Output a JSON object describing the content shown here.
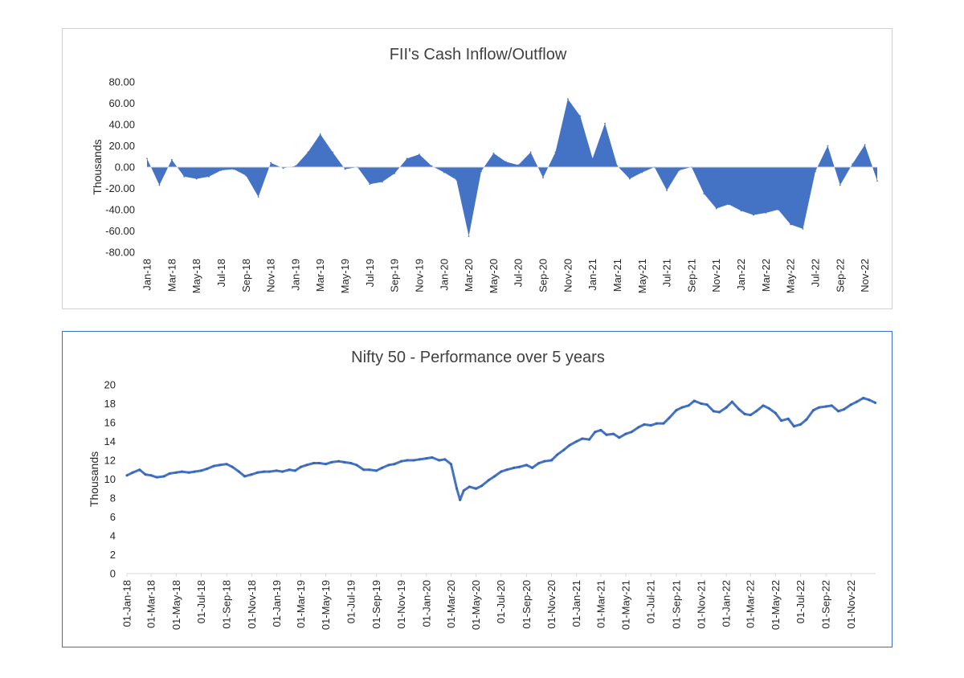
{
  "chart_data": [
    {
      "type": "area",
      "title": "FII's Cash Inflow/Outflow",
      "xlabel": "",
      "ylabel": "Thousands",
      "ylim": [
        -80,
        80
      ],
      "yticks": [
        "80.00",
        "60.00",
        "40.00",
        "20.00",
        "0.00",
        "-20.00",
        "-40.00",
        "-60.00",
        "-80.00"
      ],
      "tick_labels": [
        "Jan-18",
        "Mar-18",
        "May-18",
        "Jul-18",
        "Sep-18",
        "Nov-18",
        "Jan-19",
        "Mar-19",
        "May-19",
        "Jul-19",
        "Sep-19",
        "Nov-19",
        "Jan-20",
        "Mar-20",
        "May-20",
        "Jul-20",
        "Sep-20",
        "Nov-20",
        "Jan-21",
        "Mar-21",
        "May-21",
        "Jul-21",
        "Sep-21",
        "Nov-21",
        "Jan-22",
        "Mar-22",
        "May-22",
        "Jul-22",
        "Sep-22",
        "Nov-22"
      ],
      "categories": [
        "Jan-18",
        "Feb-18",
        "Mar-18",
        "Apr-18",
        "May-18",
        "Jun-18",
        "Jul-18",
        "Aug-18",
        "Sep-18",
        "Oct-18",
        "Nov-18",
        "Dec-18",
        "Jan-19",
        "Feb-19",
        "Mar-19",
        "Apr-19",
        "May-19",
        "Jun-19",
        "Jul-19",
        "Aug-19",
        "Sep-19",
        "Oct-19",
        "Nov-19",
        "Dec-19",
        "Jan-20",
        "Feb-20",
        "Mar-20",
        "Apr-20",
        "May-20",
        "Jun-20",
        "Jul-20",
        "Aug-20",
        "Sep-20",
        "Oct-20",
        "Nov-20",
        "Dec-20",
        "Jan-21",
        "Feb-21",
        "Mar-21",
        "Apr-21",
        "May-21",
        "Jun-21",
        "Jul-21",
        "Aug-21",
        "Sep-21",
        "Oct-21",
        "Nov-21",
        "Dec-21",
        "Jan-22",
        "Feb-22",
        "Mar-22",
        "Apr-22",
        "May-22",
        "Jun-22",
        "Jul-22",
        "Aug-22",
        "Sep-22",
        "Oct-22",
        "Nov-22",
        "Dec-22"
      ],
      "values": [
        8,
        -17,
        7,
        -9,
        -11,
        -9,
        -3,
        -2,
        -8,
        -28,
        4,
        -1,
        1,
        14,
        31,
        14,
        -2,
        0,
        -16,
        -14,
        -6,
        8,
        12,
        1,
        -5,
        -12,
        -65,
        -4,
        13,
        5,
        2,
        14,
        -10,
        14,
        64,
        48,
        8,
        41,
        1,
        -11,
        -5,
        0,
        -22,
        -3,
        0,
        -25,
        -39,
        -35,
        -41,
        -45,
        -43,
        -40,
        -54,
        -58,
        -4,
        20,
        -17,
        3,
        21,
        -13
      ],
      "fill_color": "#4472c4"
    },
    {
      "type": "line",
      "title": "Nifty 50 - Performance over 5 years",
      "xlabel": "",
      "ylabel": "Thousands",
      "ylim": [
        0,
        20
      ],
      "yticks": [
        "20",
        "18",
        "16",
        "14",
        "12",
        "10",
        "8",
        "6",
        "4",
        "2",
        "0"
      ],
      "tick_labels": [
        "01-Jan-18",
        "01-Mar-18",
        "01-May-18",
        "01-Jul-18",
        "01-Sep-18",
        "01-Nov-18",
        "01-Jan-19",
        "01-Mar-19",
        "01-May-19",
        "01-Jul-19",
        "01-Sep-19",
        "01-Nov-19",
        "01-Jan-20",
        "01-Mar-20",
        "01-May-20",
        "01-Jul-20",
        "01-Sep-20",
        "01-Nov-20",
        "01-Jan-21",
        "01-Mar-21",
        "01-May-21",
        "01-Jul-21",
        "01-Sep-21",
        "01-Nov-21",
        "01-Jan-22",
        "01-Mar-22",
        "01-May-22",
        "01-Jul-22",
        "01-Sep-22",
        "01-Nov-22"
      ],
      "x": [
        "2018-01-01",
        "2018-01-15",
        "2018-02-01",
        "2018-02-15",
        "2018-03-01",
        "2018-03-15",
        "2018-04-01",
        "2018-04-15",
        "2018-05-01",
        "2018-05-15",
        "2018-06-01",
        "2018-06-15",
        "2018-07-01",
        "2018-07-15",
        "2018-08-01",
        "2018-08-15",
        "2018-09-01",
        "2018-09-15",
        "2018-10-01",
        "2018-10-15",
        "2018-11-01",
        "2018-11-15",
        "2018-12-01",
        "2018-12-15",
        "2019-01-01",
        "2019-01-15",
        "2019-02-01",
        "2019-02-15",
        "2019-03-01",
        "2019-03-15",
        "2019-04-01",
        "2019-04-15",
        "2019-05-01",
        "2019-05-15",
        "2019-06-01",
        "2019-06-15",
        "2019-07-01",
        "2019-07-15",
        "2019-08-01",
        "2019-08-15",
        "2019-09-01",
        "2019-09-15",
        "2019-10-01",
        "2019-10-15",
        "2019-11-01",
        "2019-11-15",
        "2019-12-01",
        "2019-12-15",
        "2020-01-01",
        "2020-01-15",
        "2020-02-01",
        "2020-02-15",
        "2020-03-01",
        "2020-03-15",
        "2020-03-23",
        "2020-04-01",
        "2020-04-15",
        "2020-05-01",
        "2020-05-15",
        "2020-06-01",
        "2020-06-15",
        "2020-07-01",
        "2020-07-15",
        "2020-08-01",
        "2020-08-15",
        "2020-09-01",
        "2020-09-15",
        "2020-10-01",
        "2020-10-15",
        "2020-11-01",
        "2020-11-15",
        "2020-12-01",
        "2020-12-15",
        "2021-01-01",
        "2021-01-15",
        "2021-02-01",
        "2021-02-15",
        "2021-03-01",
        "2021-03-15",
        "2021-04-01",
        "2021-04-15",
        "2021-05-01",
        "2021-05-15",
        "2021-06-01",
        "2021-06-15",
        "2021-07-01",
        "2021-07-15",
        "2021-08-01",
        "2021-08-15",
        "2021-09-01",
        "2021-09-15",
        "2021-10-01",
        "2021-10-15",
        "2021-11-01",
        "2021-11-15",
        "2021-12-01",
        "2021-12-15",
        "2022-01-01",
        "2022-01-15",
        "2022-02-01",
        "2022-02-15",
        "2022-03-01",
        "2022-03-15",
        "2022-04-01",
        "2022-04-15",
        "2022-05-01",
        "2022-05-15",
        "2022-06-01",
        "2022-06-15",
        "2022-07-01",
        "2022-07-15",
        "2022-08-01",
        "2022-08-15",
        "2022-09-01",
        "2022-09-15",
        "2022-10-01",
        "2022-10-15",
        "2022-11-01",
        "2022-11-15",
        "2022-12-01",
        "2022-12-15",
        "2022-12-30"
      ],
      "y": [
        10.4,
        10.7,
        11.0,
        10.5,
        10.4,
        10.2,
        10.3,
        10.6,
        10.7,
        10.8,
        10.7,
        10.8,
        10.9,
        11.1,
        11.4,
        11.5,
        11.6,
        11.3,
        10.8,
        10.3,
        10.5,
        10.7,
        10.8,
        10.8,
        10.9,
        10.8,
        11.0,
        10.9,
        11.3,
        11.5,
        11.7,
        11.7,
        11.6,
        11.8,
        11.9,
        11.8,
        11.7,
        11.5,
        11.0,
        11.0,
        10.9,
        11.2,
        11.5,
        11.6,
        11.9,
        12.0,
        12.0,
        12.1,
        12.2,
        12.3,
        12.0,
        12.1,
        11.6,
        9.0,
        7.8,
        8.8,
        9.2,
        9.0,
        9.3,
        9.9,
        10.3,
        10.8,
        11.0,
        11.2,
        11.3,
        11.5,
        11.2,
        11.7,
        11.9,
        12.0,
        12.6,
        13.1,
        13.6,
        14.0,
        14.3,
        14.2,
        15.0,
        15.2,
        14.7,
        14.8,
        14.4,
        14.8,
        15.0,
        15.5,
        15.8,
        15.7,
        15.9,
        15.9,
        16.5,
        17.3,
        17.6,
        17.8,
        18.3,
        18.0,
        17.9,
        17.2,
        17.1,
        17.6,
        18.2,
        17.4,
        16.9,
        16.8,
        17.2,
        17.8,
        17.5,
        17.0,
        16.2,
        16.4,
        15.6,
        15.8,
        16.3,
        17.3,
        17.6,
        17.7,
        17.8,
        17.2,
        17.4,
        17.9,
        18.2,
        18.6,
        18.4,
        18.1
      ]
    }
  ]
}
